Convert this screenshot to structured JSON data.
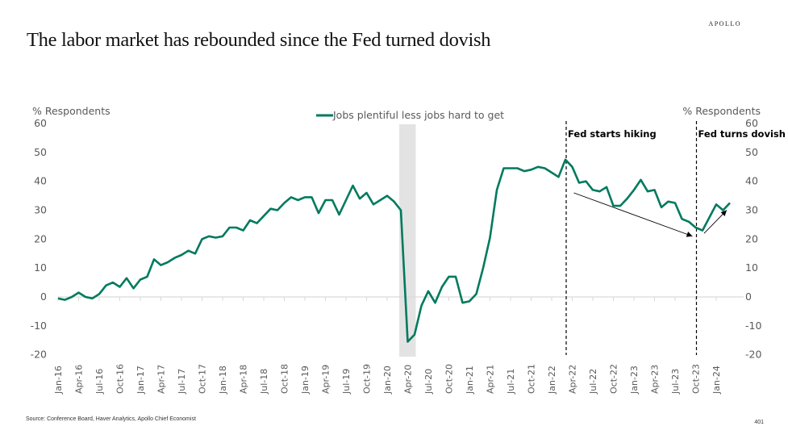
{
  "brand": "APOLLO",
  "title": "The labor market has rebounded since the Fed turned dovish",
  "footer": {
    "source": "Source: Conference Board, Haver Analytics, Apollo Chief Economist",
    "page_number": "401"
  },
  "colors": {
    "series": "#007A5E",
    "recession_shading": "#E3E3E3",
    "axis": "#D9D9D9",
    "text": "#595959"
  },
  "chart_data": {
    "type": "line",
    "title": "The labor market has rebounded since the Fed turned dovish",
    "ylabel_left": "% Respondents",
    "ylabel_right": "% Respondents",
    "ylim": [
      -20,
      60
    ],
    "yticks": [
      60,
      50,
      40,
      30,
      20,
      10,
      0,
      -10,
      -20
    ],
    "grid": false,
    "legend": {
      "position": "top-center",
      "entries": [
        "Jobs plentiful less jobs hard to get"
      ]
    },
    "x_start": "Jan-16",
    "x_frequency": "monthly",
    "xtick_labels": [
      "Jan-16",
      "Apr-16",
      "Jul-16",
      "Oct-16",
      "Jan-17",
      "Apr-17",
      "Jul-17",
      "Oct-17",
      "Jan-18",
      "Apr-18",
      "Jul-18",
      "Oct-18",
      "Jan-19",
      "Apr-19",
      "Jul-19",
      "Oct-19",
      "Jan-20",
      "Apr-20",
      "Jul-20",
      "Oct-20",
      "Jan-21",
      "Apr-21",
      "Jul-21",
      "Oct-21",
      "Jan-22",
      "Apr-22",
      "Jul-22",
      "Oct-22",
      "Jan-23",
      "Apr-23",
      "Jul-23",
      "Oct-23",
      "Jan-24"
    ],
    "series": [
      {
        "name": "Jobs plentiful less jobs hard to get",
        "values": [
          -0.5,
          -1,
          0,
          1.5,
          0,
          -0.5,
          1,
          4,
          5,
          3.5,
          6.5,
          3,
          6,
          7,
          13,
          11,
          12,
          13.5,
          14.5,
          16,
          15,
          20,
          21,
          20.5,
          21,
          24,
          24,
          23,
          26.5,
          25.5,
          28,
          30.5,
          30,
          32.5,
          34.5,
          33.5,
          34.5,
          34.5,
          29,
          33.5,
          33.5,
          28.5,
          33.5,
          38.5,
          34,
          36,
          32,
          33.5,
          35,
          33,
          30,
          -15.5,
          -13,
          -3,
          2,
          -2,
          3.5,
          7,
          7,
          -2,
          -1.5,
          1,
          10,
          20.5,
          37,
          44.5,
          44.5,
          44.5,
          43.5,
          44,
          45,
          44.5,
          43,
          41.5,
          47.5,
          45,
          39.5,
          40,
          37,
          36.5,
          38,
          31.5,
          31.5,
          34,
          37,
          40.5,
          36.5,
          37,
          31,
          33,
          32.5,
          27,
          26,
          24,
          23,
          27.5,
          32,
          30,
          32.5
        ]
      }
    ],
    "shaded_regions": [
      {
        "label": "Recession",
        "from": "Mar-20",
        "to": "Apr-20"
      }
    ],
    "annotations": [
      {
        "text": "Fed starts hiking",
        "x": "Mar-22",
        "type": "vertical-dashed-line"
      },
      {
        "text": "Fed turns dovish",
        "x": "Oct-23",
        "type": "vertical-dashed-line"
      },
      {
        "type": "arrow",
        "from": [
          "Apr-22",
          36
        ],
        "to": [
          "Oct-23",
          21
        ],
        "description": "declining trend"
      },
      {
        "type": "arrow",
        "from": [
          "Nov-23",
          22
        ],
        "to": [
          "Mar-24",
          30
        ],
        "description": "rebound"
      }
    ]
  }
}
